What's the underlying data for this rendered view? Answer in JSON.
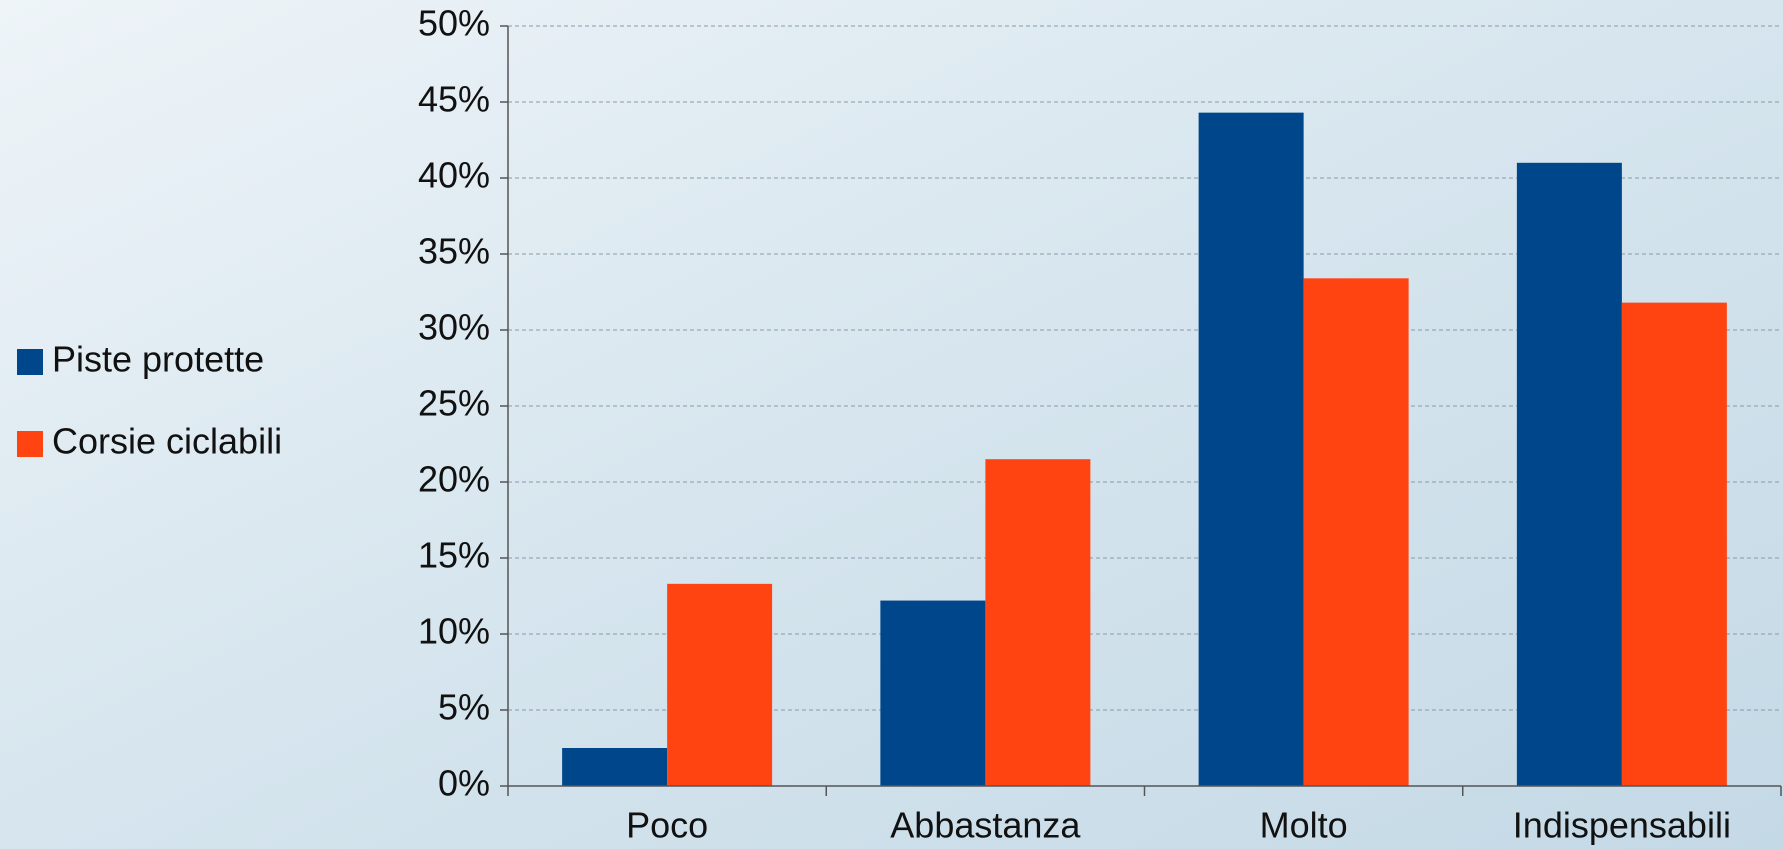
{
  "chart_data": {
    "type": "bar",
    "categories": [
      "Poco",
      "Abbastanza",
      "Molto",
      "Indispensabili"
    ],
    "series": [
      {
        "name": "Piste protette",
        "color": "#00468b",
        "values": [
          2.5,
          12.2,
          44.3,
          41.0
        ]
      },
      {
        "name": "Corsie ciclabili",
        "color": "#ff4412",
        "values": [
          13.3,
          21.5,
          33.4,
          31.8
        ]
      }
    ],
    "ylim": [
      0,
      50
    ],
    "yticks": [
      {
        "value": 0,
        "label": "0%"
      },
      {
        "value": 5,
        "label": "5%"
      },
      {
        "value": 10,
        "label": "10%"
      },
      {
        "value": 15,
        "label": "15%"
      },
      {
        "value": 20,
        "label": "20%"
      },
      {
        "value": 25,
        "label": "25%"
      },
      {
        "value": 30,
        "label": "30%"
      },
      {
        "value": 35,
        "label": "35%"
      },
      {
        "value": 40,
        "label": "40%"
      },
      {
        "value": 45,
        "label": "45%"
      },
      {
        "value": 50,
        "label": "50%"
      }
    ],
    "grid": true,
    "legend": "left"
  }
}
